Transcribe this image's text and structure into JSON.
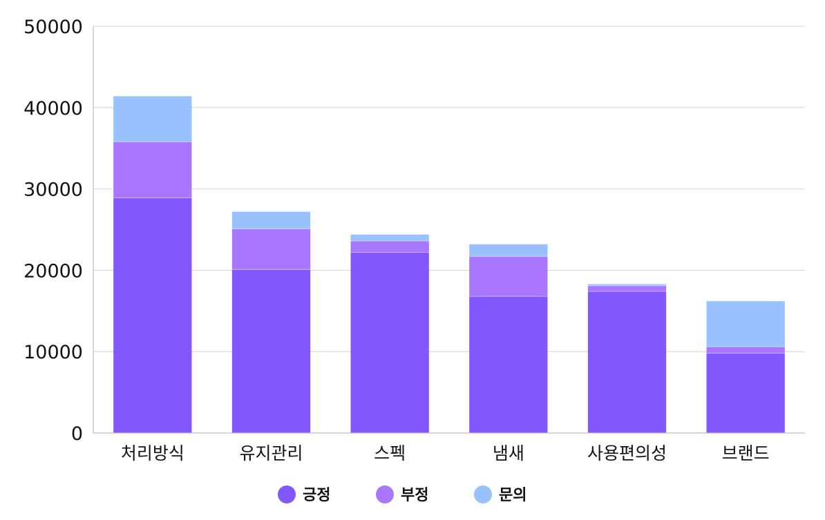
{
  "chart_data": {
    "type": "bar",
    "stacked": true,
    "categories": [
      "처리방식",
      "유지관리",
      "스펙",
      "냄새",
      "사용편의성",
      "브랜드"
    ],
    "series": [
      {
        "name": "긍정",
        "color": "#8257fe",
        "values": [
          28900,
          20100,
          22200,
          16800,
          17400,
          9800
        ]
      },
      {
        "name": "부정",
        "color": "#a977fd",
        "values": [
          6900,
          5000,
          1400,
          4900,
          700,
          800
        ]
      },
      {
        "name": "문의",
        "color": "#98c1fd",
        "values": [
          5600,
          2100,
          800,
          1500,
          200,
          5600
        ]
      }
    ],
    "yticks": [
      0,
      10000,
      20000,
      30000,
      40000,
      50000
    ],
    "ylim": [
      0,
      50000
    ],
    "grid": true,
    "legend_position": "bottom-center"
  }
}
